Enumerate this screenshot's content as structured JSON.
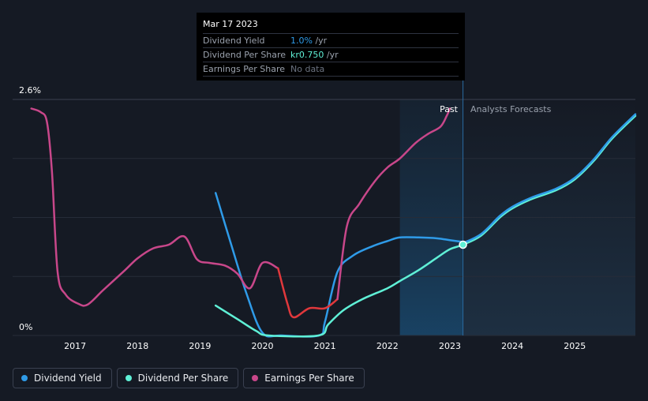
{
  "chart_data": {
    "type": "line",
    "y_tick_labels": [
      "2.6%",
      "0%"
    ],
    "ylim": [
      0,
      2.6
    ],
    "xlim": [
      2016.0,
      2025.97
    ],
    "x_tick_labels": [
      "2017",
      "2018",
      "2019",
      "2020",
      "2021",
      "2022",
      "2023",
      "2024",
      "2025"
    ],
    "x_ticks": [
      2017,
      2018,
      2019,
      2020,
      2021,
      2022,
      2023,
      2024,
      2025
    ],
    "past_label": "Past",
    "forecast_label": "Analysts Forecasts",
    "past_boundary_x": 2023.21,
    "shaded_past_start_x": 2022.2,
    "series": [
      {
        "name": "Dividend Yield",
        "color": "#2f9be8",
        "values": [
          [
            2019.25,
            1.57
          ],
          [
            2019.5,
            1.0
          ],
          [
            2019.75,
            0.45
          ],
          [
            2020.0,
            0.03
          ],
          [
            2020.3,
            0.0
          ],
          [
            2020.9,
            0.0
          ],
          [
            2021.0,
            0.15
          ],
          [
            2021.2,
            0.7
          ],
          [
            2021.45,
            0.88
          ],
          [
            2021.75,
            0.98
          ],
          [
            2022.0,
            1.04
          ],
          [
            2022.2,
            1.08
          ],
          [
            2022.5,
            1.08
          ],
          [
            2022.8,
            1.07
          ],
          [
            2023.0,
            1.05
          ],
          [
            2023.21,
            1.03
          ]
        ]
      },
      {
        "name": "Dividend Per Share",
        "color": "#5ff0d6",
        "values": [
          [
            2019.25,
            0.33
          ],
          [
            2019.6,
            0.18
          ],
          [
            2019.9,
            0.05
          ],
          [
            2020.1,
            0.0
          ],
          [
            2020.9,
            0.0
          ],
          [
            2021.05,
            0.12
          ],
          [
            2021.3,
            0.28
          ],
          [
            2021.6,
            0.4
          ],
          [
            2022.0,
            0.52
          ],
          [
            2022.2,
            0.6
          ],
          [
            2022.5,
            0.72
          ],
          [
            2022.8,
            0.86
          ],
          [
            2023.0,
            0.95
          ],
          [
            2023.21,
            1.0
          ],
          [
            2023.5,
            1.1
          ],
          [
            2023.8,
            1.3
          ],
          [
            2024.0,
            1.4
          ],
          [
            2024.3,
            1.5
          ],
          [
            2024.7,
            1.6
          ],
          [
            2025.0,
            1.72
          ],
          [
            2025.3,
            1.92
          ],
          [
            2025.6,
            2.17
          ],
          [
            2025.97,
            2.42
          ]
        ]
      },
      {
        "name": "Earnings Per Share",
        "color": "#c8478a",
        "values": [
          [
            2016.3,
            2.5
          ],
          [
            2016.45,
            2.46
          ],
          [
            2016.55,
            2.35
          ],
          [
            2016.63,
            1.8
          ],
          [
            2016.72,
            0.7
          ],
          [
            2016.85,
            0.45
          ],
          [
            2017.05,
            0.35
          ],
          [
            2017.2,
            0.34
          ],
          [
            2017.45,
            0.5
          ],
          [
            2017.8,
            0.72
          ],
          [
            2018.0,
            0.85
          ],
          [
            2018.25,
            0.96
          ],
          [
            2018.5,
            1.0
          ],
          [
            2018.75,
            1.09
          ],
          [
            2018.95,
            0.84
          ],
          [
            2019.15,
            0.8
          ],
          [
            2019.4,
            0.77
          ],
          [
            2019.6,
            0.68
          ],
          [
            2019.8,
            0.52
          ],
          [
            2020.0,
            0.8
          ],
          [
            2020.25,
            0.74
          ],
          [
            2020.4,
            0.35
          ],
          [
            2020.5,
            0.2
          ],
          [
            2020.75,
            0.3
          ],
          [
            2021.0,
            0.3
          ],
          [
            2021.2,
            0.4
          ],
          [
            2021.35,
            1.2
          ],
          [
            2021.55,
            1.45
          ],
          [
            2021.8,
            1.7
          ],
          [
            2022.0,
            1.85
          ],
          [
            2022.2,
            1.95
          ],
          [
            2022.45,
            2.12
          ],
          [
            2022.65,
            2.22
          ],
          [
            2022.85,
            2.3
          ],
          [
            2022.95,
            2.42
          ],
          [
            2023.0,
            2.5
          ]
        ],
        "negative_segment_x": [
          2020.25,
          2021.2
        ],
        "negative_color": "#e0383c"
      }
    ],
    "highlight_point": {
      "x": 2023.21,
      "y": 1.0
    }
  },
  "tooltip": {
    "date": "Mar 17 2023",
    "rows": [
      {
        "label": "Dividend Yield",
        "value": "1.0%",
        "suffix": " /yr",
        "color": "#2f9be8"
      },
      {
        "label": "Dividend Per Share",
        "value": "kr0.750",
        "suffix": " /yr",
        "color": "#5ff0d6"
      },
      {
        "label": "Earnings Per Share",
        "value": "No data",
        "suffix": "",
        "color": "#6b7280"
      }
    ]
  },
  "legend": [
    {
      "label": "Dividend Yield",
      "color": "#2f9be8"
    },
    {
      "label": "Dividend Per Share",
      "color": "#5ff0d6"
    },
    {
      "label": "Earnings Per Share",
      "color": "#c8478a"
    }
  ]
}
